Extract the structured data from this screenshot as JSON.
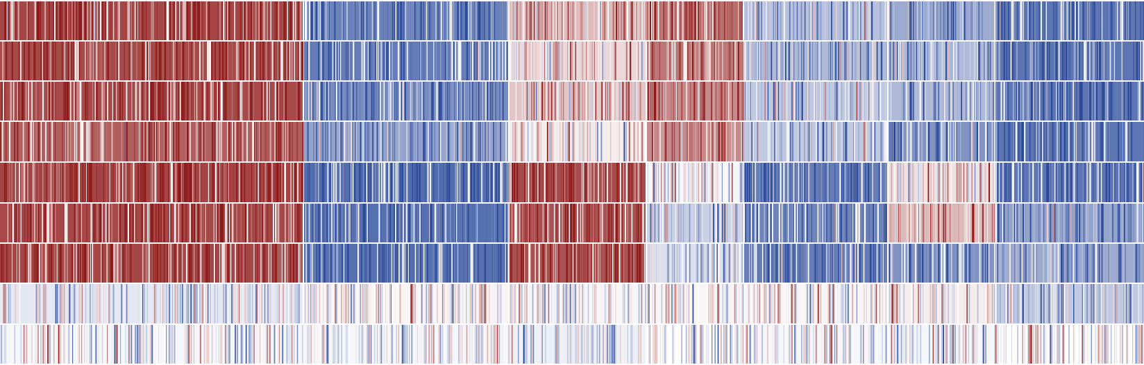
{
  "chart_data": {
    "type": "heatmap",
    "title": "",
    "xlabel": "",
    "ylabel": "",
    "grid": false,
    "legend": "none",
    "color_scale": {
      "diverging": true,
      "range": [
        -1,
        1
      ],
      "negative_color": "#2b4a9a",
      "midpoint_color": "#ffffff",
      "positive_color": "#8f1a1a"
    },
    "row_count": 9,
    "clusters": [
      {
        "name": "",
        "row_means": [
          0.95,
          0.93,
          0.93,
          0.82,
          0.96,
          0.94,
          0.95,
          -0.15,
          -0.05
        ]
      },
      {
        "name": "",
        "row_means": [
          -0.82,
          -0.85,
          -0.75,
          -0.6,
          -0.95,
          -0.93,
          -0.93,
          0.05,
          -0.05
        ]
      },
      {
        "name": "",
        "row_means": [
          0.35,
          0.2,
          0.3,
          0.1,
          0.92,
          0.9,
          0.9,
          -0.05,
          -0.1
        ]
      },
      {
        "name": "",
        "row_means": [
          0.75,
          0.7,
          0.6,
          0.6,
          -0.05,
          -0.3,
          -0.2,
          0.05,
          0.0
        ]
      },
      {
        "name": "",
        "row_means": [
          -0.4,
          -0.45,
          -0.35,
          -0.35,
          -0.85,
          -0.8,
          -0.85,
          0.05,
          -0.05
        ]
      },
      {
        "name": "",
        "row_means": [
          -0.55,
          -0.45,
          -0.45,
          -0.7,
          0.15,
          0.35,
          -0.7,
          0.1,
          -0.05
        ]
      },
      {
        "name": "",
        "row_means": [
          -0.4,
          -0.45,
          -0.5,
          -0.45,
          -0.2,
          -0.2,
          -0.35,
          0.05,
          0.0
        ]
      },
      {
        "name": "",
        "row_means": [
          -0.9,
          -0.9,
          -0.9,
          -0.9,
          -0.9,
          -0.6,
          -0.55,
          -0.35,
          0.0
        ]
      }
    ]
  }
}
